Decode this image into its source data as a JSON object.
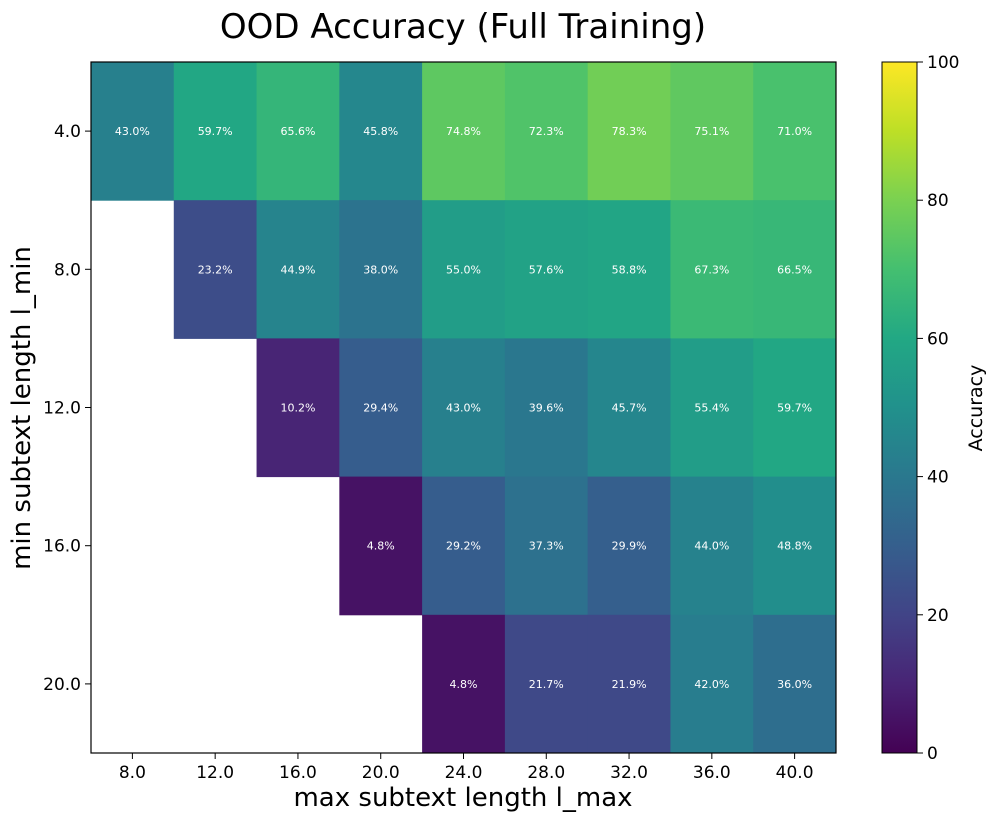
{
  "chart_data": {
    "type": "heatmap",
    "title": "OOD Accuracy (Full Training)",
    "xlabel": "max subtext length l_max",
    "ylabel": "min subtext length l_min",
    "x_categories": [
      "8.0",
      "12.0",
      "16.0",
      "20.0",
      "24.0",
      "28.0",
      "32.0",
      "36.0",
      "40.0"
    ],
    "y_categories": [
      "4.0",
      "8.0",
      "12.0",
      "16.0",
      "20.0"
    ],
    "values": [
      [
        43.0,
        59.7,
        65.6,
        45.8,
        74.8,
        72.3,
        78.3,
        75.1,
        71.0
      ],
      [
        null,
        23.2,
        44.9,
        38.0,
        55.0,
        57.6,
        58.8,
        67.3,
        66.5
      ],
      [
        null,
        null,
        10.2,
        29.4,
        43.0,
        39.6,
        45.7,
        55.4,
        59.7
      ],
      [
        null,
        null,
        null,
        4.8,
        29.2,
        37.3,
        29.9,
        44.0,
        48.8
      ],
      [
        null,
        null,
        null,
        null,
        4.8,
        21.7,
        21.9,
        42.0,
        36.0
      ]
    ],
    "value_format": "percent_1dp",
    "colormap": "viridis",
    "vmin": 0,
    "vmax": 100,
    "colorbar": {
      "label": "Accuracy",
      "ticks": [
        "0",
        "20",
        "40",
        "60",
        "80",
        "100"
      ]
    }
  }
}
